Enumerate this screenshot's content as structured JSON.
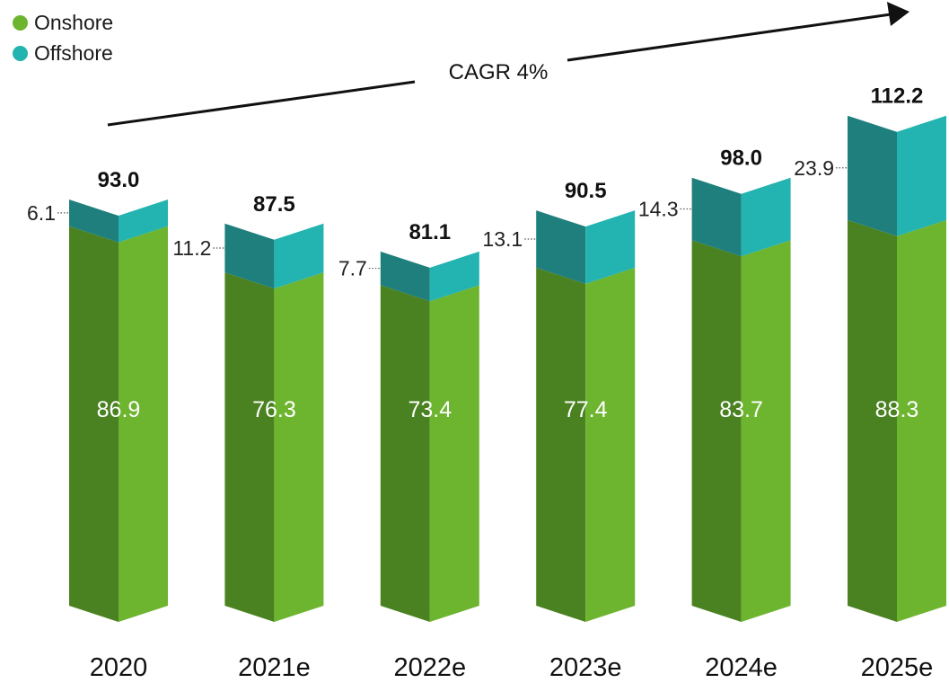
{
  "chart_data": {
    "type": "bar",
    "stacked": true,
    "title": "",
    "xlabel": "",
    "ylabel": "",
    "categories": [
      "2020",
      "2021e",
      "2022e",
      "2023e",
      "2024e",
      "2025e"
    ],
    "series": [
      {
        "name": "Onshore",
        "values": [
          86.9,
          76.3,
          73.4,
          77.4,
          83.7,
          88.3
        ]
      },
      {
        "name": "Offshore",
        "values": [
          6.1,
          11.2,
          7.7,
          13.1,
          14.3,
          23.9
        ]
      }
    ],
    "totals": [
      "93.0",
      "87.5",
      "81.1",
      "90.5",
      "98.0",
      "112.2"
    ],
    "onshore_labels": [
      "86.9",
      "76.3",
      "73.4",
      "77.4",
      "83.7",
      "88.3"
    ],
    "offshore_labels": [
      "6.1",
      "11.2",
      "7.7",
      "13.1",
      "14.3",
      "23.9"
    ],
    "annotation": "CAGR 4%",
    "legend_position": "top-left",
    "ylim": [
      0,
      115
    ],
    "colors": {
      "onshore_light": "#6db42f",
      "onshore_dark": "#4a8221",
      "offshore_light": "#23b3b0",
      "offshore_dark": "#1f7f7d",
      "legend_onshore": "#6db42f",
      "legend_offshore": "#23b3b0"
    }
  },
  "legend": [
    {
      "label": "Onshore",
      "color": "#6db42f"
    },
    {
      "label": "Offshore",
      "color": "#23b3b0"
    }
  ]
}
